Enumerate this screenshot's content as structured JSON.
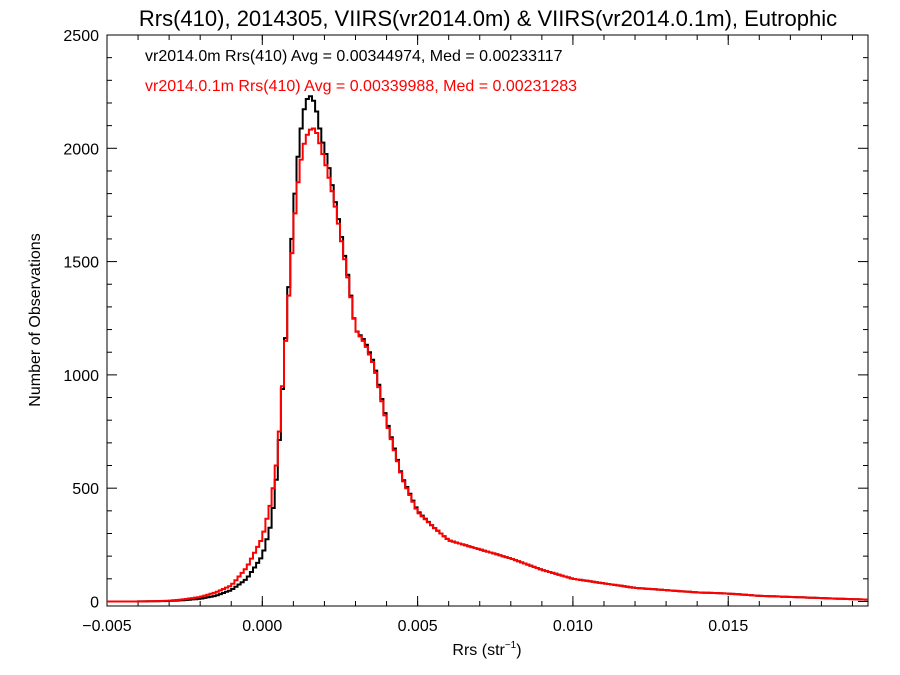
{
  "chart_data": {
    "type": "line",
    "title": "Rrs(410), 2014305, VIIRS(vr2014.0m) & VIIRS(vr2014.0.1m), Eutrophic",
    "xlabel_base": "Rrs (str",
    "xlabel_sup": "−1",
    "xlabel_close": ")",
    "ylabel": "Number of Observations",
    "xlim": [
      -0.005,
      0.0195
    ],
    "ylim": [
      -20,
      2500
    ],
    "x_ticks": [
      -0.005,
      0.0,
      0.005,
      0.01,
      0.015
    ],
    "x_tick_labels": [
      "−0.005",
      "0.000",
      "0.005",
      "0.010",
      "0.015"
    ],
    "y_ticks": [
      0,
      500,
      1000,
      1500,
      2000,
      2500
    ],
    "y_tick_labels": [
      "0",
      "500",
      "1000",
      "1500",
      "2000",
      "2500"
    ],
    "legend_position": "top-left",
    "series": [
      {
        "name": "vr2014.0m Rrs(410) Avg = 0.00344974, Med = 0.00233117",
        "color": "#000000",
        "points": [
          [
            -0.005,
            0
          ],
          [
            -0.004,
            0
          ],
          [
            -0.003,
            2
          ],
          [
            -0.0025,
            6
          ],
          [
            -0.002,
            12
          ],
          [
            -0.0015,
            25
          ],
          [
            -0.001,
            50
          ],
          [
            -0.0005,
            100
          ],
          [
            0.0,
            200
          ],
          [
            0.0003,
            350
          ],
          [
            0.0005,
            600
          ],
          [
            0.0007,
            1050
          ],
          [
            0.0009,
            1500
          ],
          [
            0.0011,
            1900
          ],
          [
            0.0013,
            2150
          ],
          [
            0.0015,
            2240
          ],
          [
            0.0017,
            2200
          ],
          [
            0.0019,
            2050
          ],
          [
            0.0021,
            1950
          ],
          [
            0.0023,
            1800
          ],
          [
            0.0025,
            1650
          ],
          [
            0.0028,
            1400
          ],
          [
            0.003,
            1200
          ],
          [
            0.0033,
            1150
          ],
          [
            0.0036,
            1050
          ],
          [
            0.004,
            800
          ],
          [
            0.0045,
            550
          ],
          [
            0.005,
            400
          ],
          [
            0.0055,
            330
          ],
          [
            0.006,
            270
          ],
          [
            0.007,
            230
          ],
          [
            0.008,
            190
          ],
          [
            0.009,
            140
          ],
          [
            0.01,
            100
          ],
          [
            0.011,
            80
          ],
          [
            0.012,
            60
          ],
          [
            0.013,
            50
          ],
          [
            0.014,
            40
          ],
          [
            0.015,
            35
          ],
          [
            0.016,
            25
          ],
          [
            0.017,
            20
          ],
          [
            0.018,
            15
          ],
          [
            0.019,
            10
          ],
          [
            0.0195,
            8
          ]
        ]
      },
      {
        "name": "vr2014.0.1m Rrs(410) Avg = 0.00339988, Med = 0.00231283",
        "color": "#ff0000",
        "points": [
          [
            -0.005,
            0
          ],
          [
            -0.004,
            0
          ],
          [
            -0.003,
            3
          ],
          [
            -0.0025,
            10
          ],
          [
            -0.002,
            20
          ],
          [
            -0.0015,
            40
          ],
          [
            -0.001,
            70
          ],
          [
            -0.0005,
            150
          ],
          [
            0.0,
            280
          ],
          [
            0.0003,
            450
          ],
          [
            0.0005,
            650
          ],
          [
            0.0007,
            1050
          ],
          [
            0.0009,
            1450
          ],
          [
            0.0011,
            1800
          ],
          [
            0.0013,
            2000
          ],
          [
            0.0015,
            2080
          ],
          [
            0.0017,
            2090
          ],
          [
            0.0019,
            2000
          ],
          [
            0.0021,
            1900
          ],
          [
            0.0023,
            1780
          ],
          [
            0.0025,
            1630
          ],
          [
            0.0028,
            1390
          ],
          [
            0.003,
            1200
          ],
          [
            0.0033,
            1140
          ],
          [
            0.0036,
            1040
          ],
          [
            0.004,
            790
          ],
          [
            0.0045,
            545
          ],
          [
            0.005,
            395
          ],
          [
            0.0055,
            330
          ],
          [
            0.006,
            270
          ],
          [
            0.007,
            230
          ],
          [
            0.008,
            190
          ],
          [
            0.009,
            140
          ],
          [
            0.01,
            100
          ],
          [
            0.011,
            80
          ],
          [
            0.012,
            60
          ],
          [
            0.013,
            50
          ],
          [
            0.014,
            40
          ],
          [
            0.015,
            35
          ],
          [
            0.016,
            25
          ],
          [
            0.017,
            20
          ],
          [
            0.018,
            15
          ],
          [
            0.019,
            10
          ],
          [
            0.0195,
            8
          ]
        ]
      }
    ]
  }
}
